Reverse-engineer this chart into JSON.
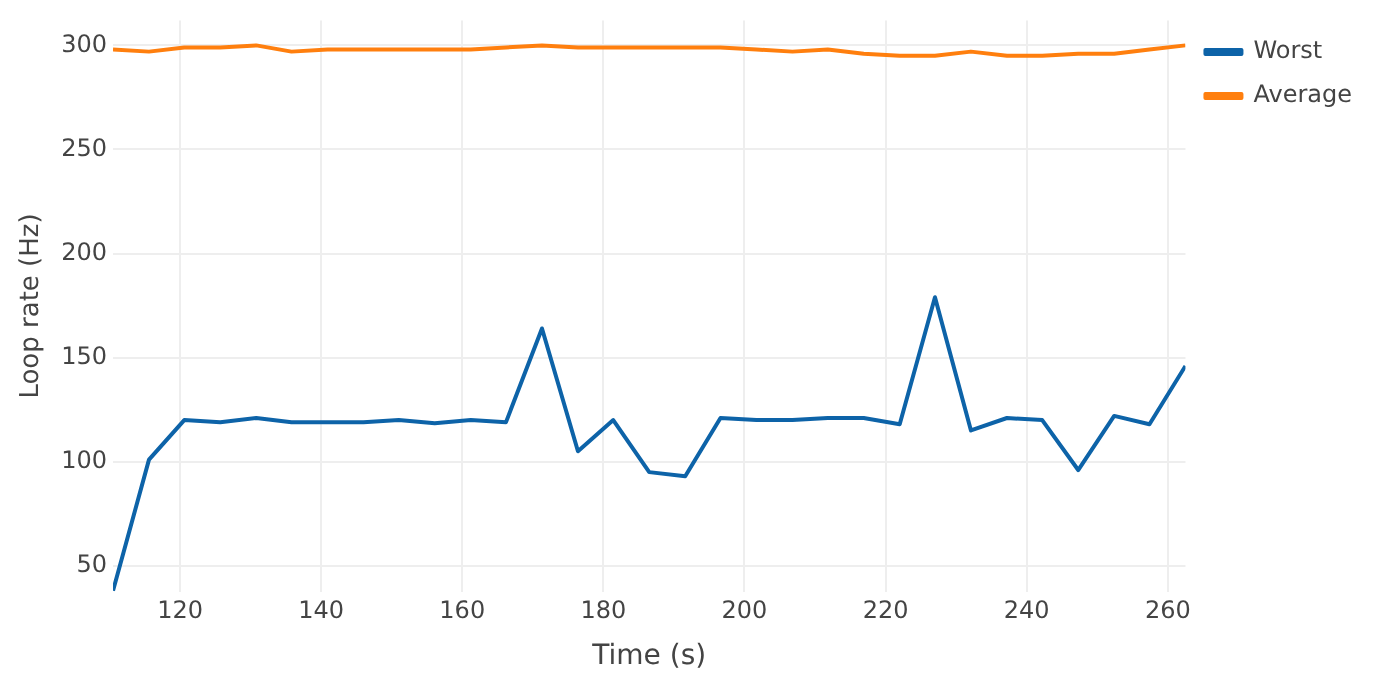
{
  "chart_data": {
    "type": "line",
    "xlabel": "Time (s)",
    "ylabel": "Loop rate (Hz)",
    "x": [
      110.5,
      115.6,
      120.6,
      125.7,
      130.8,
      135.8,
      140.9,
      146,
      151,
      156.1,
      161.2,
      166.2,
      171.3,
      176.4,
      181.4,
      186.5,
      191.6,
      196.6,
      201.7,
      206.8,
      211.8,
      216.9,
      222,
      227,
      232.1,
      237.2,
      242.2,
      247.3,
      252.4,
      257.4,
      262.5
    ],
    "series": [
      {
        "name": "Worst",
        "color": "#0d63a8",
        "values": [
          38,
          101,
          120,
          119,
          121,
          119,
          119,
          119,
          120,
          118.5,
          120,
          119,
          164,
          105,
          120,
          95,
          93,
          121,
          120,
          120,
          121,
          121,
          118,
          179,
          115,
          121,
          120,
          96,
          122,
          118,
          146
        ]
      },
      {
        "name": "Average",
        "color": "#ff7f0e",
        "values": [
          298,
          297,
          299,
          299,
          300,
          297,
          298,
          298,
          298,
          298,
          298,
          299,
          300,
          299,
          299,
          299,
          299,
          299,
          298,
          297,
          298,
          296,
          295,
          295,
          297,
          295,
          295,
          296,
          296,
          298,
          300
        ]
      }
    ],
    "xlim": [
      110.5,
      262.5
    ],
    "xticks": [
      120,
      140,
      160,
      180,
      200,
      220,
      240,
      260
    ],
    "ylim": [
      37.6,
      312
    ],
    "yticks": [
      50,
      100,
      150,
      200,
      250,
      300
    ],
    "grid": true,
    "legend": "top right",
    "marker": "none",
    "line_style": "solid"
  }
}
